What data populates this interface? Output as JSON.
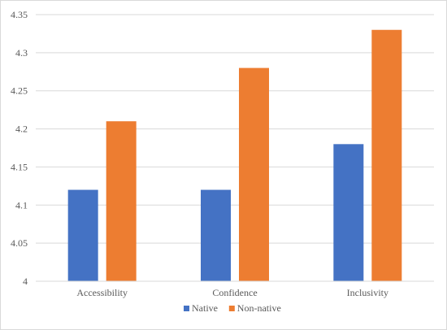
{
  "chart_data": {
    "type": "bar",
    "categories": [
      "Accessibility",
      "Confidence",
      "Inclusivity"
    ],
    "series": [
      {
        "name": "Native",
        "values": [
          4.12,
          4.12,
          4.18
        ],
        "color": "#4472c4"
      },
      {
        "name": "Non-native",
        "values": [
          4.21,
          4.28,
          4.33
        ],
        "color": "#ed7d31"
      }
    ],
    "title": "",
    "xlabel": "",
    "ylabel": "",
    "ylim": [
      4,
      4.35
    ],
    "yticks": [
      "4",
      "4.05",
      "4.1",
      "4.15",
      "4.2",
      "4.25",
      "4.3",
      "4.35"
    ],
    "grid": true,
    "legend_position": "bottom"
  }
}
